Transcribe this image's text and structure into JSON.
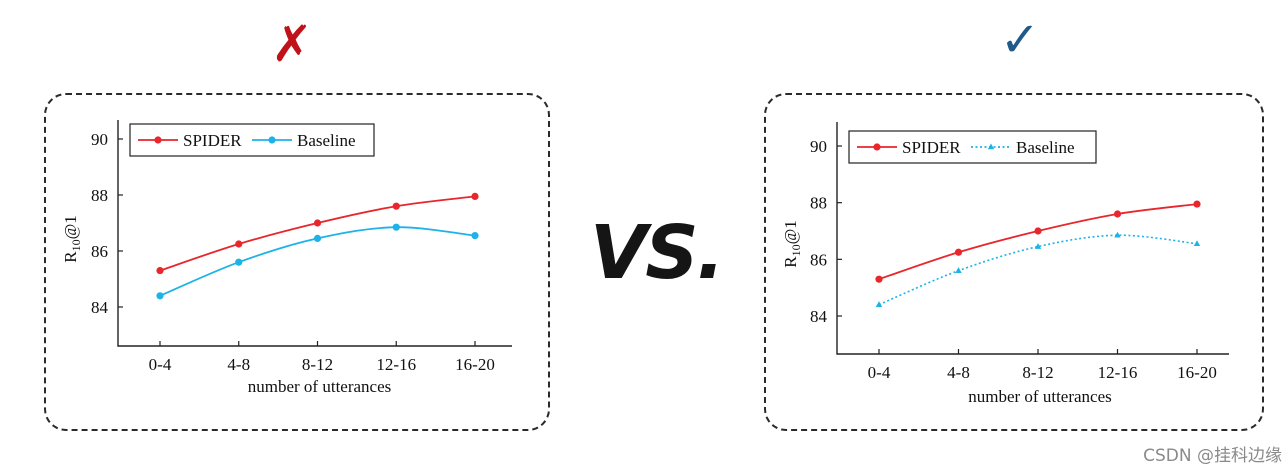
{
  "marks": {
    "wrong": "✗",
    "right": "✓",
    "vs": "VS.",
    "wrong_color": "#c0121a",
    "right_color": "#1f5a8a"
  },
  "watermark": "CSDN @挂科边缘",
  "chart_data": [
    {
      "type": "line",
      "categories": [
        "0-4",
        "4-8",
        "8-12",
        "12-16",
        "16-20"
      ],
      "xlabel": "number of utterances",
      "ylabel": "R10@1",
      "ylim": [
        83,
        91
      ],
      "yticks": [
        84,
        86,
        88,
        90
      ],
      "grid": false,
      "legend_position": "top-left",
      "series": [
        {
          "name": "SPIDER",
          "values": [
            85.3,
            86.25,
            87.0,
            87.6,
            87.95
          ],
          "color": "#e8262c",
          "style": "solid",
          "marker": "circle"
        },
        {
          "name": "Baseline",
          "values": [
            84.4,
            85.6,
            86.45,
            86.85,
            86.55
          ],
          "color": "#1db3e8",
          "style": "solid",
          "marker": "circle"
        }
      ]
    },
    {
      "type": "line",
      "categories": [
        "0-4",
        "4-8",
        "8-12",
        "12-16",
        "16-20"
      ],
      "xlabel": "number of utterances",
      "ylabel": "R10@1",
      "ylim": [
        83,
        91
      ],
      "yticks": [
        84,
        86,
        88,
        90
      ],
      "grid": false,
      "legend_position": "top-left",
      "series": [
        {
          "name": "SPIDER",
          "values": [
            85.3,
            86.25,
            87.0,
            87.6,
            87.95
          ],
          "color": "#e8262c",
          "style": "solid",
          "marker": "circle"
        },
        {
          "name": "Baseline",
          "values": [
            84.4,
            85.6,
            86.45,
            86.85,
            86.55
          ],
          "color": "#1db3e8",
          "style": "dotted",
          "marker": "triangle"
        }
      ]
    }
  ]
}
